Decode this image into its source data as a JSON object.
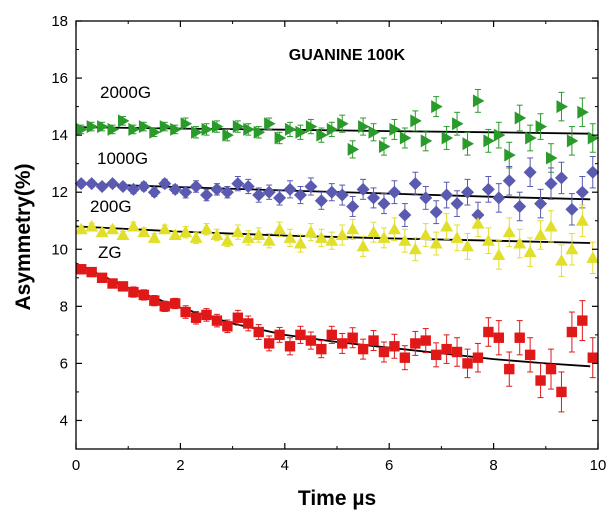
{
  "chart_data": {
    "type": "scatter",
    "title": "GUANINE 100K",
    "xlabel": "Time µs",
    "ylabel": "Asymmetry(%)",
    "xlim": [
      0,
      10
    ],
    "ylim": [
      3,
      18
    ],
    "xticks": [
      "0",
      "2",
      "4",
      "6",
      "8",
      "10"
    ],
    "yticks": [
      "4",
      "6",
      "8",
      "10",
      "12",
      "14",
      "16",
      "18"
    ],
    "grid": false,
    "legend": "none",
    "series": [
      {
        "name": "2000G",
        "color": "#2a9a2a",
        "marker": "triangle-right",
        "x": [
          0.1,
          0.3,
          0.5,
          0.7,
          0.9,
          1.1,
          1.3,
          1.5,
          1.7,
          1.9,
          2.1,
          2.3,
          2.5,
          2.7,
          2.9,
          3.1,
          3.3,
          3.5,
          3.7,
          3.9,
          4.1,
          4.3,
          4.5,
          4.7,
          4.9,
          5.1,
          5.3,
          5.5,
          5.7,
          5.9,
          6.1,
          6.3,
          6.5,
          6.7,
          6.9,
          7.1,
          7.3,
          7.5,
          7.7,
          7.9,
          8.1,
          8.3,
          8.5,
          8.7,
          8.9,
          9.1,
          9.3,
          9.5,
          9.7,
          9.9
        ],
        "y": [
          14.2,
          14.3,
          14.3,
          14.2,
          14.5,
          14.2,
          14.3,
          14.1,
          14.3,
          14.2,
          14.4,
          14.1,
          14.2,
          14.3,
          14.0,
          14.3,
          14.2,
          14.1,
          14.4,
          13.9,
          14.2,
          14.1,
          14.3,
          14.0,
          14.2,
          14.4,
          13.5,
          14.3,
          14.1,
          13.6,
          14.2,
          13.9,
          14.5,
          13.8,
          15.0,
          13.9,
          14.4,
          13.7,
          15.2,
          13.8,
          14.0,
          13.3,
          14.6,
          13.9,
          14.3,
          13.2,
          15.0,
          13.8,
          14.8,
          13.9
        ],
        "err": [
          0.15,
          0.15,
          0.15,
          0.15,
          0.15,
          0.15,
          0.15,
          0.15,
          0.15,
          0.15,
          0.2,
          0.2,
          0.2,
          0.2,
          0.2,
          0.2,
          0.2,
          0.2,
          0.2,
          0.2,
          0.25,
          0.25,
          0.25,
          0.25,
          0.25,
          0.3,
          0.3,
          0.3,
          0.3,
          0.3,
          0.35,
          0.35,
          0.35,
          0.35,
          0.35,
          0.4,
          0.4,
          0.4,
          0.4,
          0.4,
          0.45,
          0.45,
          0.45,
          0.45,
          0.45,
          0.5,
          0.5,
          0.5,
          0.5,
          0.5
        ],
        "fit": {
          "x": [
            0,
            2,
            4,
            6,
            8,
            9.85
          ],
          "y": [
            14.28,
            14.23,
            14.19,
            14.14,
            14.1,
            14.05
          ]
        }
      },
      {
        "name": "1000G",
        "color": "#5a5ab0",
        "marker": "diamond",
        "x": [
          0.1,
          0.3,
          0.5,
          0.7,
          0.9,
          1.1,
          1.3,
          1.5,
          1.7,
          1.9,
          2.1,
          2.3,
          2.5,
          2.7,
          2.9,
          3.1,
          3.3,
          3.5,
          3.7,
          3.9,
          4.1,
          4.3,
          4.5,
          4.7,
          4.9,
          5.1,
          5.3,
          5.5,
          5.7,
          5.9,
          6.1,
          6.3,
          6.5,
          6.7,
          6.9,
          7.1,
          7.3,
          7.5,
          7.7,
          7.9,
          8.1,
          8.3,
          8.5,
          8.7,
          8.9,
          9.1,
          9.3,
          9.5,
          9.7,
          9.9
        ],
        "y": [
          12.3,
          12.3,
          12.2,
          12.3,
          12.2,
          12.1,
          12.2,
          12.0,
          12.3,
          12.1,
          12.0,
          12.2,
          11.9,
          12.1,
          12.0,
          12.3,
          12.2,
          11.9,
          12.0,
          11.8,
          12.1,
          11.9,
          12.2,
          11.7,
          12.0,
          11.9,
          11.5,
          12.1,
          11.8,
          11.6,
          12.0,
          11.2,
          12.3,
          11.8,
          11.3,
          11.9,
          11.6,
          12.0,
          11.2,
          12.1,
          11.8,
          12.4,
          11.5,
          12.7,
          11.6,
          12.3,
          12.5,
          11.4,
          12.0,
          12.7
        ],
        "err": [
          0.12,
          0.12,
          0.12,
          0.12,
          0.12,
          0.15,
          0.15,
          0.15,
          0.15,
          0.15,
          0.2,
          0.2,
          0.2,
          0.2,
          0.2,
          0.25,
          0.25,
          0.25,
          0.25,
          0.25,
          0.3,
          0.3,
          0.3,
          0.3,
          0.3,
          0.35,
          0.35,
          0.35,
          0.35,
          0.35,
          0.4,
          0.4,
          0.4,
          0.4,
          0.4,
          0.45,
          0.45,
          0.45,
          0.45,
          0.45,
          0.5,
          0.5,
          0.5,
          0.5,
          0.5,
          0.55,
          0.55,
          0.55,
          0.55,
          0.55
        ],
        "fit": {
          "x": [
            0,
            2,
            4,
            6,
            8,
            9.85
          ],
          "y": [
            12.3,
            12.18,
            12.06,
            11.95,
            11.84,
            11.75
          ]
        }
      },
      {
        "name": "200G",
        "color": "#e2df2a",
        "marker": "triangle-up",
        "x": [
          0.1,
          0.3,
          0.5,
          0.7,
          0.9,
          1.1,
          1.3,
          1.5,
          1.7,
          1.9,
          2.1,
          2.3,
          2.5,
          2.7,
          2.9,
          3.1,
          3.3,
          3.5,
          3.7,
          3.9,
          4.1,
          4.3,
          4.5,
          4.7,
          4.9,
          5.1,
          5.3,
          5.5,
          5.7,
          5.9,
          6.1,
          6.3,
          6.5,
          6.7,
          6.9,
          7.1,
          7.3,
          7.5,
          7.7,
          7.9,
          8.1,
          8.3,
          8.5,
          8.7,
          8.9,
          9.1,
          9.3,
          9.5,
          9.7,
          9.9
        ],
        "y": [
          10.7,
          10.8,
          10.6,
          10.7,
          10.5,
          10.8,
          10.6,
          10.4,
          10.7,
          10.5,
          10.6,
          10.4,
          10.7,
          10.5,
          10.3,
          10.6,
          10.4,
          10.5,
          10.3,
          10.7,
          10.4,
          10.2,
          10.6,
          10.4,
          10.3,
          10.5,
          10.7,
          10.1,
          10.6,
          10.4,
          10.7,
          10.3,
          10.0,
          10.5,
          10.2,
          10.8,
          10.4,
          10.1,
          10.9,
          10.3,
          9.8,
          10.6,
          10.2,
          9.9,
          10.5,
          10.8,
          9.6,
          10.0,
          11.0,
          9.7
        ],
        "err": [
          0.12,
          0.12,
          0.12,
          0.12,
          0.12,
          0.15,
          0.15,
          0.15,
          0.15,
          0.15,
          0.2,
          0.2,
          0.2,
          0.2,
          0.2,
          0.25,
          0.25,
          0.25,
          0.25,
          0.25,
          0.3,
          0.3,
          0.3,
          0.3,
          0.3,
          0.35,
          0.35,
          0.35,
          0.35,
          0.35,
          0.4,
          0.4,
          0.4,
          0.4,
          0.4,
          0.45,
          0.45,
          0.45,
          0.45,
          0.45,
          0.5,
          0.5,
          0.5,
          0.5,
          0.5,
          0.55,
          0.55,
          0.55,
          0.55,
          0.55
        ],
        "fit": {
          "x": [
            0,
            2,
            4,
            6,
            8,
            9.85
          ],
          "y": [
            10.8,
            10.62,
            10.48,
            10.38,
            10.3,
            10.22
          ]
        }
      },
      {
        "name": "ZG",
        "color": "#e01818",
        "marker": "square",
        "x": [
          0.1,
          0.3,
          0.5,
          0.7,
          0.9,
          1.1,
          1.3,
          1.5,
          1.7,
          1.9,
          2.1,
          2.3,
          2.5,
          2.7,
          2.9,
          3.1,
          3.3,
          3.5,
          3.7,
          3.9,
          4.1,
          4.3,
          4.5,
          4.7,
          4.9,
          5.1,
          5.3,
          5.5,
          5.7,
          5.9,
          6.1,
          6.3,
          6.5,
          6.7,
          6.9,
          7.1,
          7.3,
          7.5,
          7.7,
          7.9,
          8.1,
          8.3,
          8.5,
          8.7,
          8.9,
          9.1,
          9.3,
          9.5,
          9.7,
          9.9
        ],
        "y": [
          9.3,
          9.2,
          9.0,
          8.8,
          8.7,
          8.5,
          8.4,
          8.2,
          8.0,
          8.1,
          7.8,
          7.6,
          7.7,
          7.5,
          7.3,
          7.6,
          7.4,
          7.1,
          6.7,
          7.0,
          6.6,
          7.0,
          6.8,
          6.5,
          7.0,
          6.7,
          6.9,
          6.5,
          6.8,
          6.4,
          6.6,
          6.2,
          6.7,
          6.8,
          6.3,
          6.5,
          6.4,
          6.0,
          6.2,
          7.1,
          6.9,
          5.8,
          6.9,
          6.3,
          5.4,
          5.8,
          5.0,
          7.1,
          7.5,
          6.2
        ],
        "err": [
          0.15,
          0.15,
          0.15,
          0.15,
          0.15,
          0.18,
          0.18,
          0.18,
          0.18,
          0.18,
          0.22,
          0.22,
          0.22,
          0.22,
          0.22,
          0.26,
          0.26,
          0.26,
          0.26,
          0.26,
          0.3,
          0.3,
          0.3,
          0.3,
          0.3,
          0.35,
          0.35,
          0.35,
          0.35,
          0.35,
          0.42,
          0.42,
          0.42,
          0.42,
          0.42,
          0.5,
          0.5,
          0.5,
          0.5,
          0.5,
          0.6,
          0.6,
          0.6,
          0.6,
          0.6,
          0.7,
          0.7,
          0.7,
          0.7,
          0.7
        ],
        "fit": {
          "x": [
            0,
            1,
            2,
            3,
            4,
            5,
            6,
            7,
            8,
            9,
            9.85
          ],
          "y": [
            9.5,
            8.65,
            7.95,
            7.4,
            7.0,
            6.75,
            6.55,
            6.35,
            6.15,
            6.0,
            5.9
          ]
        }
      }
    ]
  }
}
